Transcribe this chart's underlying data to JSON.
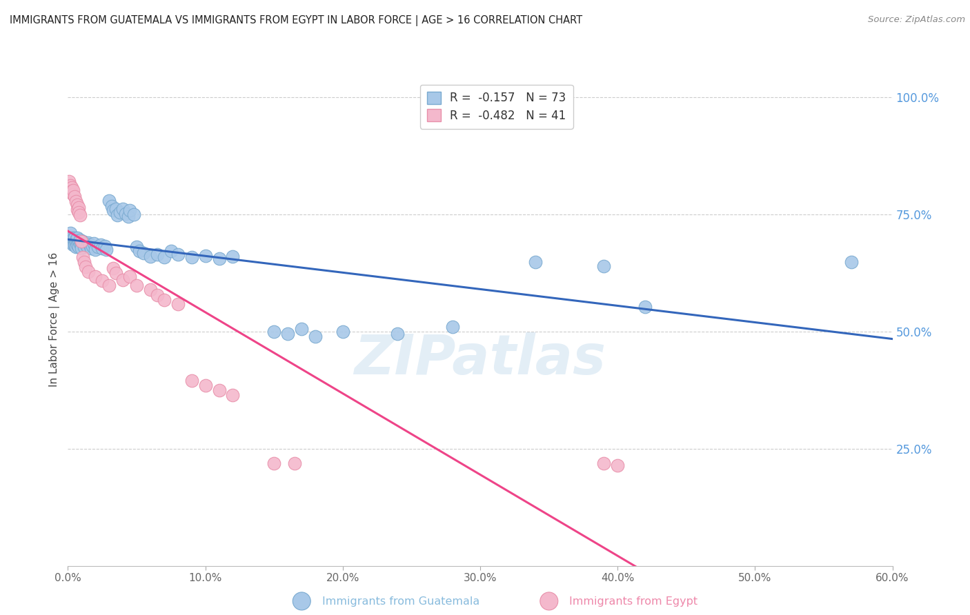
{
  "title": "IMMIGRANTS FROM GUATEMALA VS IMMIGRANTS FROM EGYPT IN LABOR FORCE | AGE > 16 CORRELATION CHART",
  "source": "Source: ZipAtlas.com",
  "ylabel": "In Labor Force | Age > 16",
  "watermark": "ZIPatlas",
  "x_min": 0.0,
  "x_max": 0.6,
  "y_min": 0.0,
  "y_max": 1.05,
  "guatemala_color": "#a8c8e8",
  "egypt_color": "#f4b8cc",
  "guatemala_edge": "#7aaad0",
  "egypt_edge": "#e890aa",
  "trendline_guatemala_color": "#3366bb",
  "trendline_egypt_solid_color": "#ee4488",
  "trendline_egypt_dashed_color": "#f4b8cc",
  "legend_r1": "R =  -0.157",
  "legend_n1": "N = 73",
  "legend_r2": "R =  -0.482",
  "legend_n2": "N = 41",
  "legend_color1": "#a8c8e8",
  "legend_color2": "#f4b8cc",
  "bottom_label1": "Immigrants from Guatemala",
  "bottom_label2": "Immigrants from Egypt",
  "bottom_color1": "#88bbdd",
  "bottom_color2": "#ee88aa",
  "guatemala_scatter": [
    [
      0.001,
      0.7
    ],
    [
      0.002,
      0.695
    ],
    [
      0.002,
      0.71
    ],
    [
      0.003,
      0.688
    ],
    [
      0.003,
      0.7
    ],
    [
      0.003,
      0.695
    ],
    [
      0.004,
      0.692
    ],
    [
      0.004,
      0.685
    ],
    [
      0.004,
      0.698
    ],
    [
      0.005,
      0.69
    ],
    [
      0.005,
      0.7
    ],
    [
      0.005,
      0.685
    ],
    [
      0.006,
      0.695
    ],
    [
      0.006,
      0.688
    ],
    [
      0.006,
      0.68
    ],
    [
      0.007,
      0.692
    ],
    [
      0.007,
      0.7
    ],
    [
      0.007,
      0.685
    ],
    [
      0.008,
      0.69
    ],
    [
      0.008,
      0.68
    ],
    [
      0.009,
      0.688
    ],
    [
      0.009,
      0.695
    ],
    [
      0.01,
      0.685
    ],
    [
      0.01,
      0.678
    ],
    [
      0.011,
      0.692
    ],
    [
      0.012,
      0.68
    ],
    [
      0.013,
      0.688
    ],
    [
      0.014,
      0.682
    ],
    [
      0.015,
      0.69
    ],
    [
      0.016,
      0.685
    ],
    [
      0.017,
      0.678
    ],
    [
      0.018,
      0.682
    ],
    [
      0.019,
      0.688
    ],
    [
      0.02,
      0.675
    ],
    [
      0.022,
      0.68
    ],
    [
      0.024,
      0.685
    ],
    [
      0.025,
      0.678
    ],
    [
      0.027,
      0.682
    ],
    [
      0.028,
      0.675
    ],
    [
      0.03,
      0.78
    ],
    [
      0.032,
      0.768
    ],
    [
      0.033,
      0.758
    ],
    [
      0.035,
      0.762
    ],
    [
      0.036,
      0.748
    ],
    [
      0.038,
      0.755
    ],
    [
      0.04,
      0.762
    ],
    [
      0.042,
      0.752
    ],
    [
      0.044,
      0.745
    ],
    [
      0.045,
      0.758
    ],
    [
      0.048,
      0.75
    ],
    [
      0.05,
      0.68
    ],
    [
      0.052,
      0.672
    ],
    [
      0.055,
      0.668
    ],
    [
      0.06,
      0.66
    ],
    [
      0.065,
      0.665
    ],
    [
      0.07,
      0.658
    ],
    [
      0.075,
      0.672
    ],
    [
      0.08,
      0.665
    ],
    [
      0.09,
      0.658
    ],
    [
      0.1,
      0.662
    ],
    [
      0.11,
      0.655
    ],
    [
      0.12,
      0.66
    ],
    [
      0.15,
      0.5
    ],
    [
      0.16,
      0.495
    ],
    [
      0.17,
      0.505
    ],
    [
      0.18,
      0.49
    ],
    [
      0.2,
      0.5
    ],
    [
      0.24,
      0.495
    ],
    [
      0.28,
      0.51
    ],
    [
      0.34,
      0.648
    ],
    [
      0.39,
      0.64
    ],
    [
      0.42,
      0.552
    ],
    [
      0.57,
      0.648
    ]
  ],
  "egypt_scatter": [
    [
      0.001,
      0.82
    ],
    [
      0.001,
      0.808
    ],
    [
      0.002,
      0.8
    ],
    [
      0.002,
      0.812
    ],
    [
      0.003,
      0.795
    ],
    [
      0.003,
      0.808
    ],
    [
      0.003,
      0.8
    ],
    [
      0.004,
      0.792
    ],
    [
      0.004,
      0.802
    ],
    [
      0.005,
      0.788
    ],
    [
      0.006,
      0.778
    ],
    [
      0.007,
      0.77
    ],
    [
      0.007,
      0.76
    ],
    [
      0.008,
      0.765
    ],
    [
      0.008,
      0.755
    ],
    [
      0.009,
      0.748
    ],
    [
      0.01,
      0.692
    ],
    [
      0.011,
      0.658
    ],
    [
      0.012,
      0.648
    ],
    [
      0.013,
      0.638
    ],
    [
      0.015,
      0.628
    ],
    [
      0.02,
      0.618
    ],
    [
      0.025,
      0.608
    ],
    [
      0.03,
      0.598
    ],
    [
      0.033,
      0.635
    ],
    [
      0.035,
      0.625
    ],
    [
      0.04,
      0.61
    ],
    [
      0.045,
      0.618
    ],
    [
      0.05,
      0.598
    ],
    [
      0.06,
      0.59
    ],
    [
      0.065,
      0.578
    ],
    [
      0.07,
      0.568
    ],
    [
      0.08,
      0.558
    ],
    [
      0.09,
      0.395
    ],
    [
      0.1,
      0.385
    ],
    [
      0.11,
      0.375
    ],
    [
      0.12,
      0.365
    ],
    [
      0.15,
      0.218
    ],
    [
      0.165,
      0.218
    ],
    [
      0.39,
      0.218
    ],
    [
      0.4,
      0.215
    ]
  ],
  "trendline_egypt_solid_end": 0.42,
  "x_ticks": [
    0.0,
    0.1,
    0.2,
    0.3,
    0.4,
    0.5,
    0.6
  ],
  "y_ticks_right": [
    0.25,
    0.5,
    0.75,
    1.0
  ]
}
